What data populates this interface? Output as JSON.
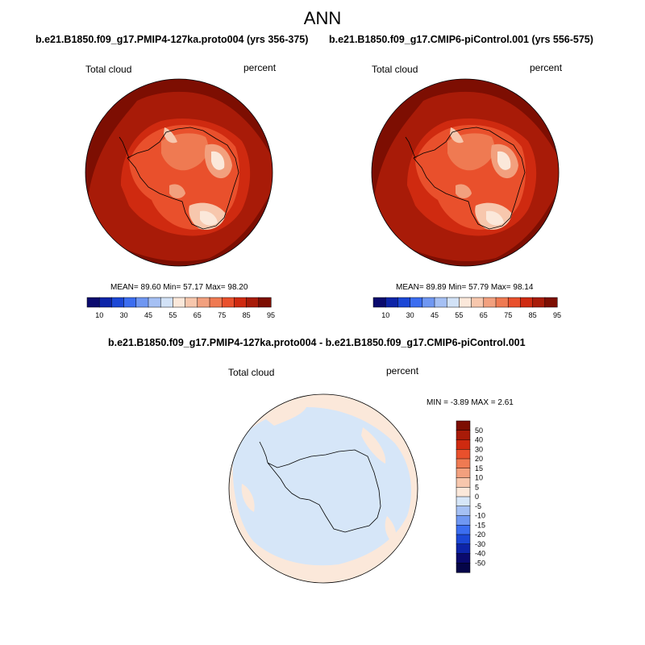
{
  "title": "ANN",
  "panels": [
    {
      "case": "b.e21.B1850.f09_g17.PMIP4-127ka.proto004 (yrs 356-375)",
      "variable": "Total cloud",
      "units": "percent",
      "stats": {
        "mean_label": "MEAN=",
        "mean": "89.60",
        "min_label": "Min=",
        "min": "57.17",
        "max_label": "Max=",
        "max": "98.20"
      }
    },
    {
      "case": "b.e21.B1850.f09_g17.CMIP6-piControl.001 (yrs 556-575)",
      "variable": "Total cloud",
      "units": "percent",
      "stats": {
        "mean_label": "MEAN=",
        "mean": "89.89",
        "min_label": "Min=",
        "min": "57.79",
        "max_label": "Max=",
        "max": "98.14"
      }
    }
  ],
  "diff_panel": {
    "title": "b.e21.B1850.f09_g17.PMIP4-127ka.proto004 - b.e21.B1850.f09_g17.CMIP6-piControl.001",
    "variable": "Total cloud",
    "units": "percent",
    "stats": {
      "min_label": "MIN =",
      "min": "-3.89",
      "max_label": "MAX =",
      "max": "2.61"
    }
  },
  "abs_colorbar": {
    "tick_labels": [
      "10",
      "30",
      "45",
      "55",
      "65",
      "75",
      "85",
      "95"
    ],
    "colors": [
      "#0a0a6e",
      "#0d24a8",
      "#1b47d6",
      "#3b6df0",
      "#6f97f2",
      "#a5c0f4",
      "#d2e2f7",
      "#fbe8da",
      "#f7c7ad",
      "#f2a07e",
      "#ef7a52",
      "#e9502c",
      "#cf2a10",
      "#a81b08",
      "#7d0e02"
    ]
  },
  "diff_colorbar": {
    "tick_labels": [
      "50",
      "40",
      "30",
      "20",
      "15",
      "10",
      "5",
      "0",
      "-5",
      "-10",
      "-15",
      "-20",
      "-30",
      "-40",
      "-50"
    ],
    "colors": [
      "#7d0e02",
      "#a81b08",
      "#cf2a10",
      "#e9502c",
      "#ef7a52",
      "#f2a07e",
      "#f7c7ad",
      "#fbe8da",
      "#d6e6f8",
      "#a5c0f4",
      "#6f97f2",
      "#3b6df0",
      "#1b47d6",
      "#0d24a8",
      "#0a0a6e",
      "#050548"
    ]
  },
  "colors": {
    "ocean_high": "#7d0e02",
    "ocean_mid": "#a81b08",
    "land_low": "#f2a07e",
    "land_lowest": "#fbe8da",
    "diff_pos": "#fbe8da",
    "diff_neg": "#d6e6f8"
  }
}
